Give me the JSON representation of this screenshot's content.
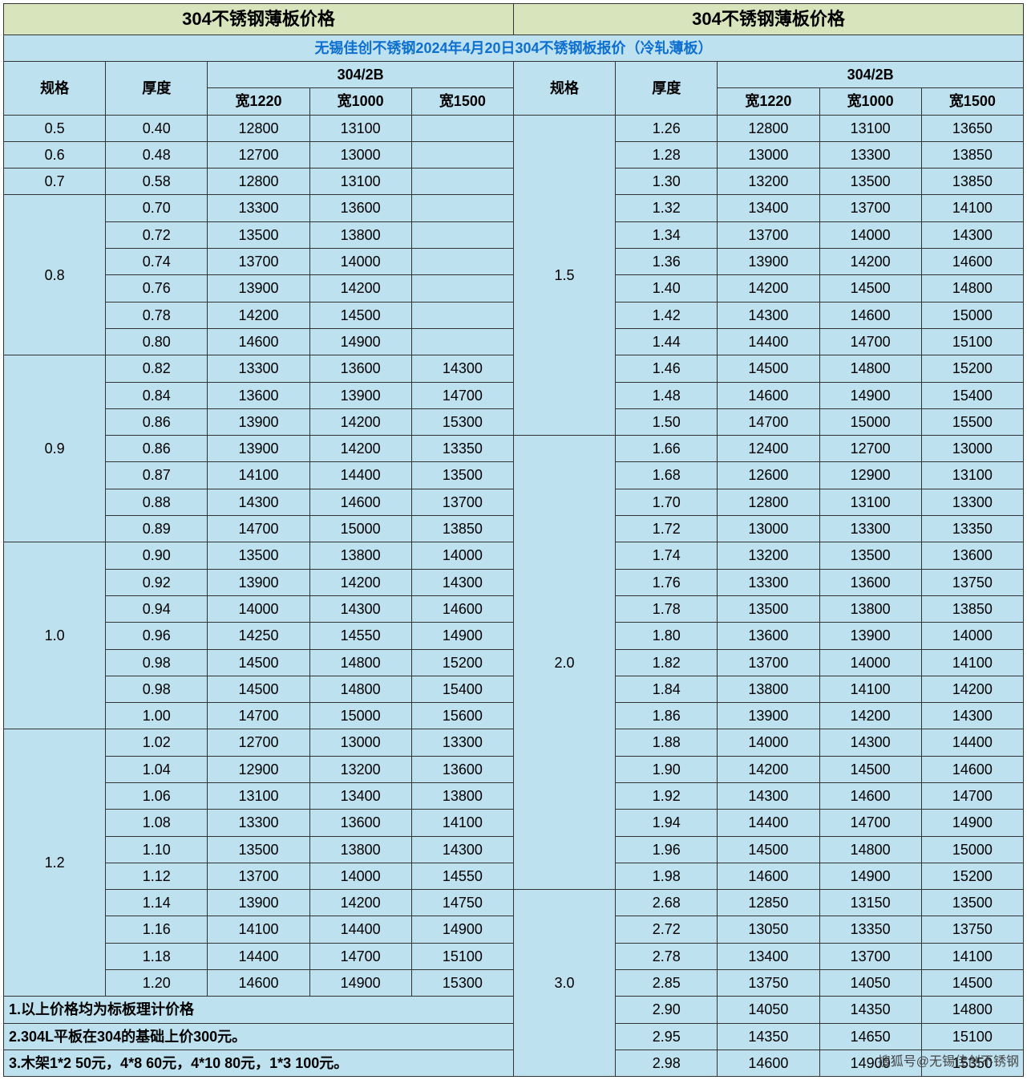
{
  "colors": {
    "title_bg": "#d7e4bc",
    "header_bg": "#bee1f0",
    "data_bg": "#bee1f0",
    "border": "#333333",
    "banner_text": "#0d6fcf"
  },
  "title_left": "304不锈钢薄板价格",
  "title_right": "304不锈钢薄板价格",
  "banner": "无锡佳创不锈钢2024年4月20日304不锈钢板报价（冷轧薄板）",
  "headers": {
    "spec": "规格",
    "thickness": "厚度",
    "group": "304/2B",
    "w1220": "宽1220",
    "w1000": "宽1000",
    "w1500": "宽1500"
  },
  "left_groups": [
    {
      "spec": "0.5",
      "rows": [
        {
          "t": "0.40",
          "a": "12800",
          "b": "13100",
          "c": ""
        }
      ]
    },
    {
      "spec": "0.6",
      "rows": [
        {
          "t": "0.48",
          "a": "12700",
          "b": "13000",
          "c": ""
        }
      ]
    },
    {
      "spec": "0.7",
      "rows": [
        {
          "t": "0.58",
          "a": "12800",
          "b": "13100",
          "c": ""
        }
      ]
    },
    {
      "spec": "0.8",
      "rows": [
        {
          "t": "0.70",
          "a": "13300",
          "b": "13600",
          "c": ""
        },
        {
          "t": "0.72",
          "a": "13500",
          "b": "13800",
          "c": ""
        },
        {
          "t": "0.74",
          "a": "13700",
          "b": "14000",
          "c": ""
        },
        {
          "t": "0.76",
          "a": "13900",
          "b": "14200",
          "c": ""
        },
        {
          "t": "0.78",
          "a": "14200",
          "b": "14500",
          "c": ""
        },
        {
          "t": "0.80",
          "a": "14600",
          "b": "14900",
          "c": ""
        }
      ]
    },
    {
      "spec": "0.9",
      "rows": [
        {
          "t": "0.82",
          "a": "13300",
          "b": "13600",
          "c": "14300"
        },
        {
          "t": "0.84",
          "a": "13600",
          "b": "13900",
          "c": "14700"
        },
        {
          "t": "0.86",
          "a": "13900",
          "b": "14200",
          "c": "15300"
        },
        {
          "t": "0.86",
          "a": "13900",
          "b": "14200",
          "c": "13350"
        },
        {
          "t": "0.87",
          "a": "14100",
          "b": "14400",
          "c": "13500"
        },
        {
          "t": "0.88",
          "a": "14300",
          "b": "14600",
          "c": "13700"
        },
        {
          "t": "0.89",
          "a": "14700",
          "b": "15000",
          "c": "13850"
        }
      ]
    },
    {
      "spec": "1.0",
      "rows": [
        {
          "t": "0.90",
          "a": "13500",
          "b": "13800",
          "c": "14000"
        },
        {
          "t": "0.92",
          "a": "13900",
          "b": "14200",
          "c": "14300"
        },
        {
          "t": "0.94",
          "a": "14000",
          "b": "14300",
          "c": "14600"
        },
        {
          "t": "0.96",
          "a": "14250",
          "b": "14550",
          "c": "14900"
        },
        {
          "t": "0.98",
          "a": "14500",
          "b": "14800",
          "c": "15200"
        },
        {
          "t": "0.98",
          "a": "14500",
          "b": "14800",
          "c": "15400"
        },
        {
          "t": "1.00",
          "a": "14700",
          "b": "15000",
          "c": "15600"
        }
      ]
    },
    {
      "spec": "1.2",
      "rows": [
        {
          "t": "1.02",
          "a": "12700",
          "b": "13000",
          "c": "13300"
        },
        {
          "t": "1.04",
          "a": "12900",
          "b": "13200",
          "c": "13600"
        },
        {
          "t": "1.06",
          "a": "13100",
          "b": "13400",
          "c": "13800"
        },
        {
          "t": "1.08",
          "a": "13300",
          "b": "13600",
          "c": "14100"
        },
        {
          "t": "1.10",
          "a": "13500",
          "b": "13800",
          "c": "14300"
        },
        {
          "t": "1.12",
          "a": "13700",
          "b": "14000",
          "c": "14550"
        },
        {
          "t": "1.14",
          "a": "13900",
          "b": "14200",
          "c": "14750"
        },
        {
          "t": "1.16",
          "a": "14100",
          "b": "14400",
          "c": "14900"
        },
        {
          "t": "1.18",
          "a": "14400",
          "b": "14700",
          "c": "15100"
        },
        {
          "t": "1.20",
          "a": "14600",
          "b": "14900",
          "c": "15300"
        }
      ]
    }
  ],
  "right_groups": [
    {
      "spec": "1.5",
      "rows": [
        {
          "t": "1.26",
          "a": "12800",
          "b": "13100",
          "c": "13650"
        },
        {
          "t": "1.28",
          "a": "13000",
          "b": "13300",
          "c": "13850"
        },
        {
          "t": "1.30",
          "a": "13200",
          "b": "13500",
          "c": "13850"
        },
        {
          "t": "1.32",
          "a": "13400",
          "b": "13700",
          "c": "14100"
        },
        {
          "t": "1.34",
          "a": "13700",
          "b": "14000",
          "c": "14300"
        },
        {
          "t": "1.36",
          "a": "13900",
          "b": "14200",
          "c": "14600"
        },
        {
          "t": "1.40",
          "a": "14200",
          "b": "14500",
          "c": "14800"
        },
        {
          "t": "1.42",
          "a": "14300",
          "b": "14600",
          "c": "15000"
        },
        {
          "t": "1.44",
          "a": "14400",
          "b": "14700",
          "c": "15100"
        },
        {
          "t": "1.46",
          "a": "14500",
          "b": "14800",
          "c": "15200"
        },
        {
          "t": "1.48",
          "a": "14600",
          "b": "14900",
          "c": "15400"
        },
        {
          "t": "1.50",
          "a": "14700",
          "b": "15000",
          "c": "15500"
        }
      ]
    },
    {
      "spec": "2.0",
      "rows": [
        {
          "t": "1.66",
          "a": "12400",
          "b": "12700",
          "c": "13000"
        },
        {
          "t": "1.68",
          "a": "12600",
          "b": "12900",
          "c": "13100"
        },
        {
          "t": "1.70",
          "a": "12800",
          "b": "13100",
          "c": "13300"
        },
        {
          "t": "1.72",
          "a": "13000",
          "b": "13300",
          "c": "13350"
        },
        {
          "t": "1.74",
          "a": "13200",
          "b": "13500",
          "c": "13600"
        },
        {
          "t": "1.76",
          "a": "13300",
          "b": "13600",
          "c": "13750"
        },
        {
          "t": "1.78",
          "a": "13500",
          "b": "13800",
          "c": "13850"
        },
        {
          "t": "1.80",
          "a": "13600",
          "b": "13900",
          "c": "14000"
        },
        {
          "t": "1.82",
          "a": "13700",
          "b": "14000",
          "c": "14100"
        },
        {
          "t": "1.84",
          "a": "13800",
          "b": "14100",
          "c": "14200"
        },
        {
          "t": "1.86",
          "a": "13900",
          "b": "14200",
          "c": "14300"
        },
        {
          "t": "1.88",
          "a": "14000",
          "b": "14300",
          "c": "14400"
        },
        {
          "t": "1.90",
          "a": "14200",
          "b": "14500",
          "c": "14600"
        },
        {
          "t": "1.92",
          "a": "14300",
          "b": "14600",
          "c": "14700"
        },
        {
          "t": "1.94",
          "a": "14400",
          "b": "14700",
          "c": "14900"
        },
        {
          "t": "1.96",
          "a": "14500",
          "b": "14800",
          "c": "15000"
        },
        {
          "t": "1.98",
          "a": "14600",
          "b": "14900",
          "c": "15200"
        }
      ]
    },
    {
      "spec": "3.0",
      "rows": [
        {
          "t": "2.68",
          "a": "12850",
          "b": "13150",
          "c": "13500"
        },
        {
          "t": "2.72",
          "a": "13050",
          "b": "13350",
          "c": "13750"
        },
        {
          "t": "2.78",
          "a": "13400",
          "b": "13700",
          "c": "14100"
        },
        {
          "t": "2.85",
          "a": "13750",
          "b": "14050",
          "c": "14500"
        },
        {
          "t": "2.90",
          "a": "14050",
          "b": "14350",
          "c": "14800"
        },
        {
          "t": "2.95",
          "a": "14350",
          "b": "14650",
          "c": "15100"
        },
        {
          "t": "2.98",
          "a": "14600",
          "b": "14900",
          "c": "15350"
        }
      ]
    }
  ],
  "notes": [
    "1.以上价格均为标板理计价格",
    "2.304L平板在304的基础上价300元。",
    "3.木架1*2 50元，4*8 60元，4*10 80元，1*3 100元。"
  ],
  "source": "搜狐号@无锡佳创不锈钢"
}
